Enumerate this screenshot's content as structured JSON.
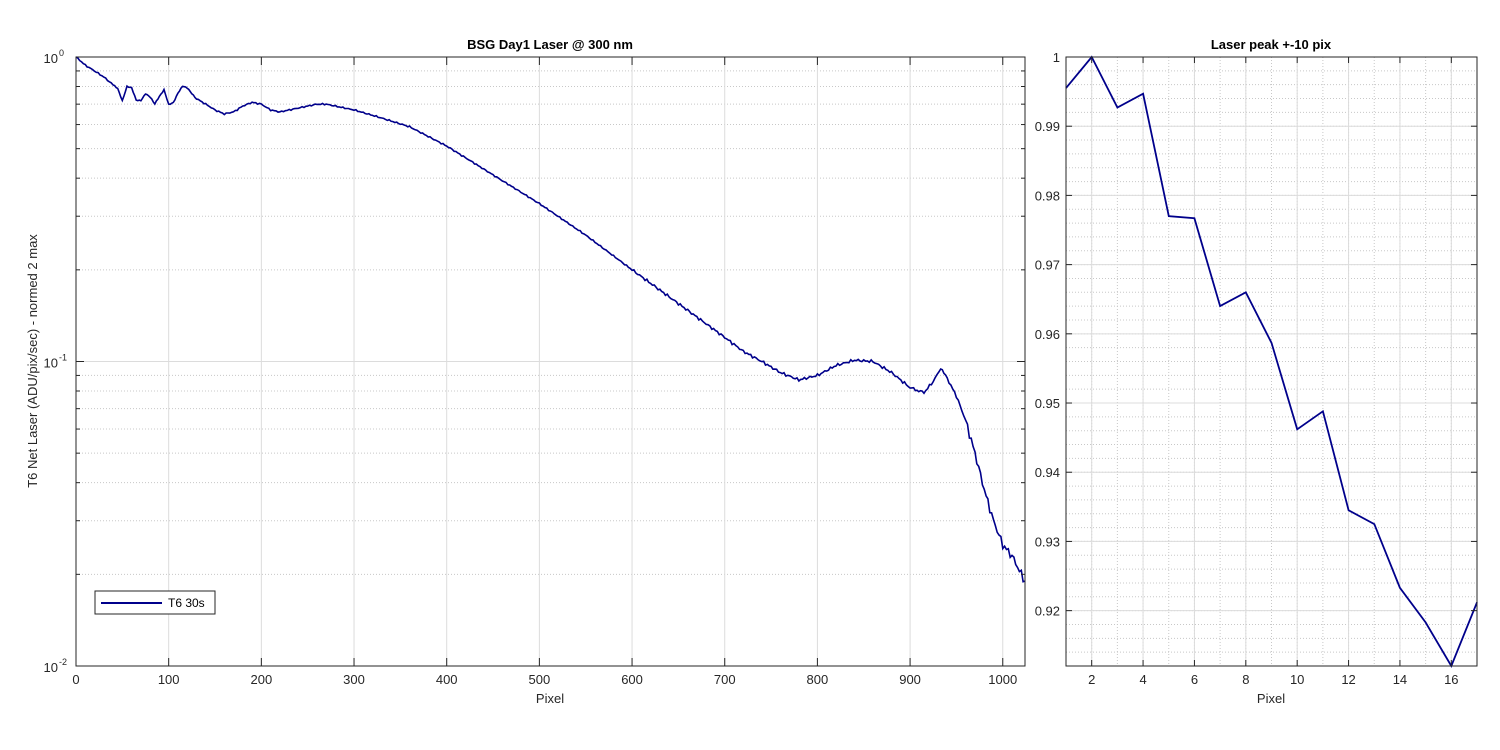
{
  "chart_data": [
    {
      "type": "line",
      "title": "BSG  Day1 Laser @ 300 nm",
      "xlabel": "Pixel",
      "ylabel": "T6 Net Laser (ADU/pix/sec) - normed 2 max",
      "xlim": [
        0,
        1024
      ],
      "ylim": [
        0.01,
        1
      ],
      "yscale": "log",
      "grid": true,
      "minor_grid": true,
      "legend_position": "bottom-left",
      "x_ticks": [
        0,
        100,
        200,
        300,
        400,
        500,
        600,
        700,
        800,
        900,
        1000
      ],
      "x_tick_labels": [
        "0",
        "100",
        "200",
        "300",
        "400",
        "500",
        "600",
        "700",
        "800",
        "900",
        "1000"
      ],
      "y_tick_labels": [
        "10^-2",
        "10^-1",
        "10^0"
      ],
      "line_color": "#00008B",
      "series": [
        {
          "name": "T6 30s",
          "points": [
            [
              0,
              1.0
            ],
            [
              10,
              0.94
            ],
            [
              20,
              0.9
            ],
            [
              30,
              0.86
            ],
            [
              40,
              0.81
            ],
            [
              45,
              0.79
            ],
            [
              50,
              0.72
            ],
            [
              55,
              0.8
            ],
            [
              60,
              0.79
            ],
            [
              65,
              0.72
            ],
            [
              70,
              0.72
            ],
            [
              75,
              0.76
            ],
            [
              80,
              0.74
            ],
            [
              85,
              0.7
            ],
            [
              90,
              0.74
            ],
            [
              95,
              0.78
            ],
            [
              100,
              0.7
            ],
            [
              105,
              0.71
            ],
            [
              110,
              0.76
            ],
            [
              115,
              0.8
            ],
            [
              120,
              0.79
            ],
            [
              125,
              0.76
            ],
            [
              130,
              0.73
            ],
            [
              140,
              0.7
            ],
            [
              150,
              0.67
            ],
            [
              160,
              0.65
            ],
            [
              170,
              0.66
            ],
            [
              180,
              0.69
            ],
            [
              190,
              0.71
            ],
            [
              200,
              0.7
            ],
            [
              210,
              0.67
            ],
            [
              220,
              0.66
            ],
            [
              240,
              0.68
            ],
            [
              260,
              0.7
            ],
            [
              270,
              0.7
            ],
            [
              300,
              0.67
            ],
            [
              330,
              0.63
            ],
            [
              360,
              0.59
            ],
            [
              400,
              0.51
            ],
            [
              450,
              0.41
            ],
            [
              500,
              0.33
            ],
            [
              550,
              0.26
            ],
            [
              600,
              0.2
            ],
            [
              650,
              0.155
            ],
            [
              700,
              0.12
            ],
            [
              720,
              0.108
            ],
            [
              740,
              0.1
            ],
            [
              760,
              0.092
            ],
            [
              780,
              0.087
            ],
            [
              800,
              0.09
            ],
            [
              820,
              0.097
            ],
            [
              840,
              0.101
            ],
            [
              860,
              0.1
            ],
            [
              880,
              0.092
            ],
            [
              900,
              0.082
            ],
            [
              915,
              0.079
            ],
            [
              925,
              0.086
            ],
            [
              933,
              0.095
            ],
            [
              940,
              0.088
            ],
            [
              950,
              0.077
            ],
            [
              960,
              0.064
            ],
            [
              970,
              0.05
            ],
            [
              980,
              0.038
            ],
            [
              990,
              0.03
            ],
            [
              1000,
              0.025
            ],
            [
              1010,
              0.023
            ],
            [
              1020,
              0.02
            ],
            [
              1024,
              0.019
            ]
          ]
        }
      ]
    },
    {
      "type": "line",
      "title": "Laser peak +-10 pix",
      "xlabel": "Pixel",
      "ylabel": "",
      "xlim": [
        1,
        17
      ],
      "ylim": [
        0.912,
        1.0
      ],
      "grid": true,
      "minor_grid": true,
      "x_ticks": [
        2,
        4,
        6,
        8,
        10,
        12,
        14,
        16
      ],
      "x_tick_labels": [
        "2",
        "4",
        "6",
        "8",
        "10",
        "12",
        "14",
        "16"
      ],
      "y_ticks": [
        0.92,
        0.93,
        0.94,
        0.95,
        0.96,
        0.97,
        0.98,
        0.99,
        1.0
      ],
      "y_tick_labels": [
        "0.92",
        "0.93",
        "0.94",
        "0.95",
        "0.96",
        "0.97",
        "0.98",
        "0.99",
        "1"
      ],
      "line_color": "#00008B",
      "series": [
        {
          "x": [
            1,
            2,
            3,
            4,
            5,
            6,
            7,
            8,
            9,
            10,
            11,
            12,
            13,
            14,
            15,
            16,
            17
          ],
          "values": [
            0.9955,
            1.0,
            0.9927,
            0.9947,
            0.977,
            0.9767,
            0.964,
            0.966,
            0.9587,
            0.9462,
            0.9488,
            0.9345,
            0.9325,
            0.9233,
            0.9183,
            0.912,
            0.9212
          ]
        }
      ]
    }
  ]
}
